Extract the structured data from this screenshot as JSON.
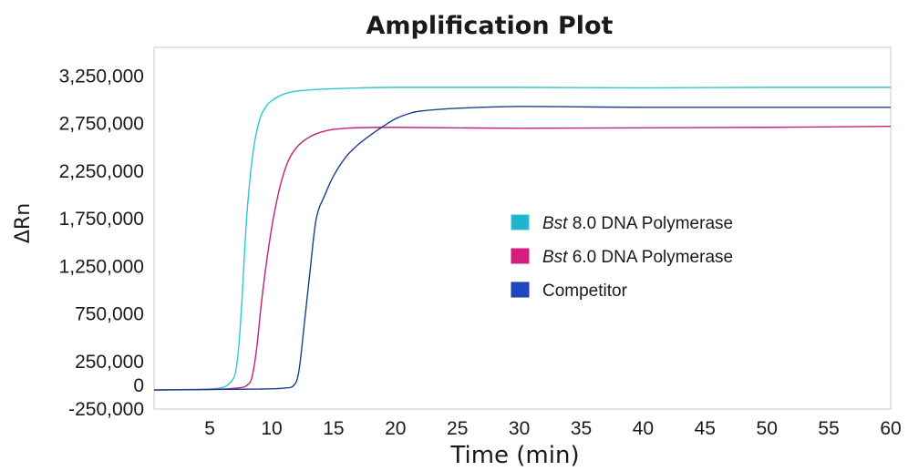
{
  "chart_data": {
    "type": "line",
    "title": "Amplification Plot",
    "xlabel": "Time (min)",
    "ylabel": "ΔRn",
    "xlim": [
      0.5,
      60
    ],
    "ylim": [
      -250000,
      3550000
    ],
    "x_ticks": [
      5,
      10,
      15,
      20,
      25,
      30,
      35,
      40,
      45,
      50,
      55,
      60
    ],
    "x_tick_labels": [
      "5",
      "10",
      "15",
      "20",
      "25",
      "30",
      "35",
      "40",
      "45",
      "50",
      "55",
      "60"
    ],
    "y_ticks": [
      -250000,
      0,
      250000,
      750000,
      1250000,
      1750000,
      2250000,
      2750000,
      3250000
    ],
    "y_tick_labels": [
      "-250,000",
      "0",
      "250,000",
      "750,000",
      "1,250,000",
      "1,750,000",
      "2,250,000",
      "2,750,000",
      "3,250,000"
    ],
    "grid": false,
    "legend_position": "center-right",
    "series": [
      {
        "name_italic": "Bst",
        "name_rest": " 8.0 DNA Polymerase",
        "color": "#2ec8cf",
        "swatch_color": "#1fb5cf",
        "x": [
          0.5,
          3,
          5,
          6,
          6.5,
          7,
          7.3,
          7.6,
          8,
          8.5,
          9,
          9.5,
          10,
          11,
          12,
          14,
          16,
          20,
          30,
          40,
          50,
          60
        ],
        "y": [
          -50000,
          -45000,
          -40000,
          -25000,
          10000,
          100000,
          350000,
          900000,
          1800000,
          2450000,
          2780000,
          2920000,
          2990000,
          3060000,
          3090000,
          3110000,
          3120000,
          3130000,
          3130000,
          3125000,
          3130000,
          3130000
        ]
      },
      {
        "name_italic": "Bst",
        "name_rest": " 6.0 DNA Polymerase",
        "color": "#c0207e",
        "swatch_color": "#d81b7e",
        "x": [
          0.5,
          4,
          6,
          7.5,
          8,
          8.4,
          8.8,
          9.2,
          9.7,
          10.2,
          10.8,
          11.5,
          12.5,
          14,
          16,
          20,
          30,
          40,
          50,
          60
        ],
        "y": [
          -50000,
          -45000,
          -40000,
          -25000,
          0,
          80000,
          400000,
          900000,
          1400000,
          1800000,
          2150000,
          2400000,
          2560000,
          2660000,
          2700000,
          2710000,
          2700000,
          2705000,
          2710000,
          2720000
        ]
      },
      {
        "name_italic": "",
        "name_rest": "Competitor",
        "color": "#1c3f8a",
        "swatch_color": "#1f48c8",
        "x": [
          0.5,
          5,
          9,
          11,
          11.8,
          12.2,
          12.6,
          13.1,
          13.6,
          14.3,
          15,
          16,
          17,
          18,
          19,
          20,
          21,
          22,
          25,
          30,
          35,
          40,
          50,
          60
        ],
        "y": [
          -50000,
          -45000,
          -40000,
          -30000,
          0,
          150000,
          600000,
          1200000,
          1750000,
          2000000,
          2200000,
          2400000,
          2530000,
          2630000,
          2720000,
          2800000,
          2850000,
          2880000,
          2910000,
          2930000,
          2925000,
          2920000,
          2920000,
          2920000
        ]
      }
    ]
  }
}
